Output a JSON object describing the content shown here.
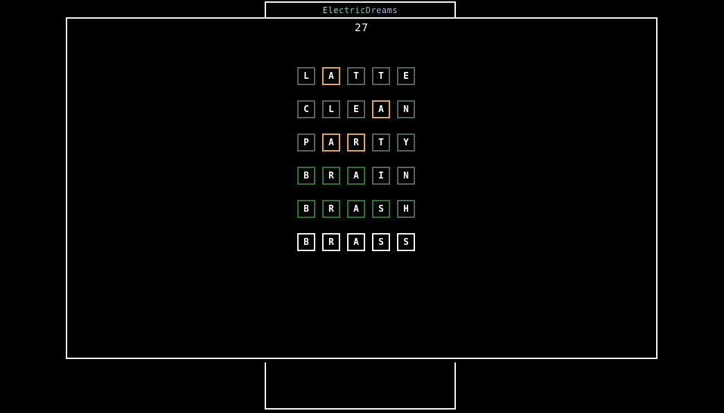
{
  "app": {
    "title": "ElectricDreams"
  },
  "score": "27",
  "colors": {
    "absent": "#4f6a64",
    "present": "#e8b050",
    "correct": "#2a7a2a",
    "current": "#ffffff"
  },
  "rows": [
    {
      "tiles": [
        {
          "letter": "L",
          "state": "absent"
        },
        {
          "letter": "A",
          "state": "present"
        },
        {
          "letter": "T",
          "state": "absent"
        },
        {
          "letter": "T",
          "state": "absent"
        },
        {
          "letter": "E",
          "state": "absent"
        }
      ]
    },
    {
      "tiles": [
        {
          "letter": "C",
          "state": "absent"
        },
        {
          "letter": "L",
          "state": "absent"
        },
        {
          "letter": "E",
          "state": "absent"
        },
        {
          "letter": "A",
          "state": "present"
        },
        {
          "letter": "N",
          "state": "absent"
        }
      ]
    },
    {
      "tiles": [
        {
          "letter": "P",
          "state": "absent"
        },
        {
          "letter": "A",
          "state": "present"
        },
        {
          "letter": "R",
          "state": "present"
        },
        {
          "letter": "T",
          "state": "absent"
        },
        {
          "letter": "Y",
          "state": "absent"
        }
      ]
    },
    {
      "tiles": [
        {
          "letter": "B",
          "state": "correct"
        },
        {
          "letter": "R",
          "state": "correct"
        },
        {
          "letter": "A",
          "state": "correct"
        },
        {
          "letter": "I",
          "state": "absent"
        },
        {
          "letter": "N",
          "state": "absent"
        }
      ]
    },
    {
      "tiles": [
        {
          "letter": "B",
          "state": "correct"
        },
        {
          "letter": "R",
          "state": "correct"
        },
        {
          "letter": "A",
          "state": "correct"
        },
        {
          "letter": "S",
          "state": "correct"
        },
        {
          "letter": "H",
          "state": "absent"
        }
      ]
    },
    {
      "tiles": [
        {
          "letter": "B",
          "state": "current"
        },
        {
          "letter": "R",
          "state": "current"
        },
        {
          "letter": "A",
          "state": "current"
        },
        {
          "letter": "S",
          "state": "current"
        },
        {
          "letter": "S",
          "state": "current"
        }
      ]
    }
  ]
}
